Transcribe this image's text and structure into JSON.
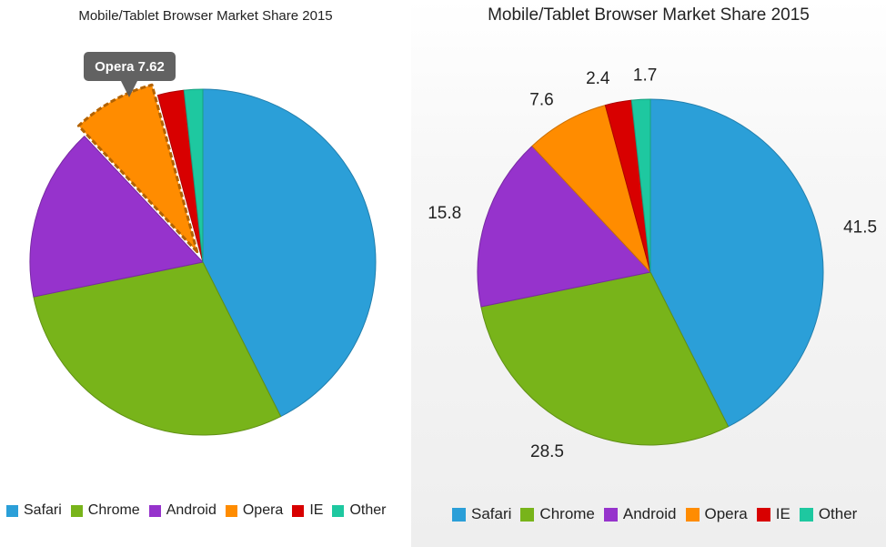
{
  "chart_data": [
    {
      "type": "pie",
      "title": "Mobile/Tablet Browser Market Share 2015",
      "categories": [
        "Safari",
        "Chrome",
        "Android",
        "Opera",
        "IE",
        "Other"
      ],
      "values": [
        41.5,
        28.5,
        15.8,
        7.62,
        2.4,
        1.7
      ],
      "colors": [
        "#2b9fd8",
        "#78b41a",
        "#9633cc",
        "#ff8c00",
        "#d80000",
        "#1ec8a0"
      ],
      "legend": "bottom",
      "selected_slice": "Opera",
      "tooltip": {
        "label": "Opera",
        "value": "7.62"
      }
    },
    {
      "type": "pie",
      "title": "Mobile/Tablet Browser Market Share 2015",
      "categories": [
        "Safari",
        "Chrome",
        "Android",
        "Opera",
        "IE",
        "Other"
      ],
      "values": [
        41.5,
        28.5,
        15.8,
        7.6,
        2.4,
        1.7
      ],
      "data_labels": [
        "41.5",
        "28.5",
        "15.8",
        "7.6",
        "2.4",
        "1.7"
      ],
      "colors": [
        "#2b9fd8",
        "#78b41a",
        "#9633cc",
        "#ff8c00",
        "#d80000",
        "#1ec8a0"
      ],
      "legend": "bottom"
    }
  ]
}
